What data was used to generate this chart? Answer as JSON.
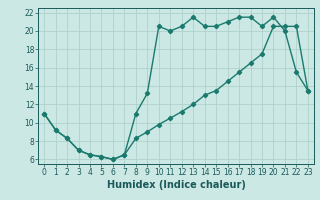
{
  "line1_x": [
    0,
    1,
    2,
    3,
    4,
    5,
    6,
    7,
    8,
    9,
    10,
    11,
    12,
    13,
    14,
    15,
    16,
    17,
    18,
    19,
    20,
    21,
    22,
    23
  ],
  "line1_y": [
    11,
    9.2,
    8.3,
    7.0,
    6.5,
    6.3,
    6.0,
    6.5,
    11.0,
    13.2,
    20.5,
    20.0,
    20.5,
    21.5,
    20.5,
    20.5,
    21.0,
    21.5,
    21.5,
    20.5,
    21.5,
    20.0,
    15.5,
    13.5
  ],
  "line2_x": [
    0,
    1,
    2,
    3,
    4,
    5,
    6,
    7,
    8,
    9,
    10,
    11,
    12,
    13,
    14,
    15,
    16,
    17,
    18,
    19,
    20,
    21,
    22,
    23
  ],
  "line2_y": [
    11,
    9.2,
    8.3,
    7.0,
    6.5,
    6.3,
    6.0,
    6.5,
    8.3,
    9.0,
    9.8,
    10.5,
    11.2,
    12.0,
    13.0,
    13.5,
    14.5,
    15.5,
    16.5,
    17.5,
    20.5,
    20.5,
    20.5,
    13.5
  ],
  "color": "#1a7a6e",
  "bg_color": "#cce8e4",
  "grid_color": "#aaccc8",
  "xlabel": "Humidex (Indice chaleur)",
  "xlim": [
    -0.5,
    23.5
  ],
  "ylim": [
    5.5,
    22.5
  ],
  "yticks": [
    6,
    8,
    10,
    12,
    14,
    16,
    18,
    20,
    22
  ],
  "xticks": [
    0,
    1,
    2,
    3,
    4,
    5,
    6,
    7,
    8,
    9,
    10,
    11,
    12,
    13,
    14,
    15,
    16,
    17,
    18,
    19,
    20,
    21,
    22,
    23
  ],
  "marker": "D",
  "markersize": 2.2,
  "linewidth": 1.0,
  "font_color": "#1a5a5a",
  "xlabel_fontsize": 7,
  "tick_fontsize": 5.5
}
